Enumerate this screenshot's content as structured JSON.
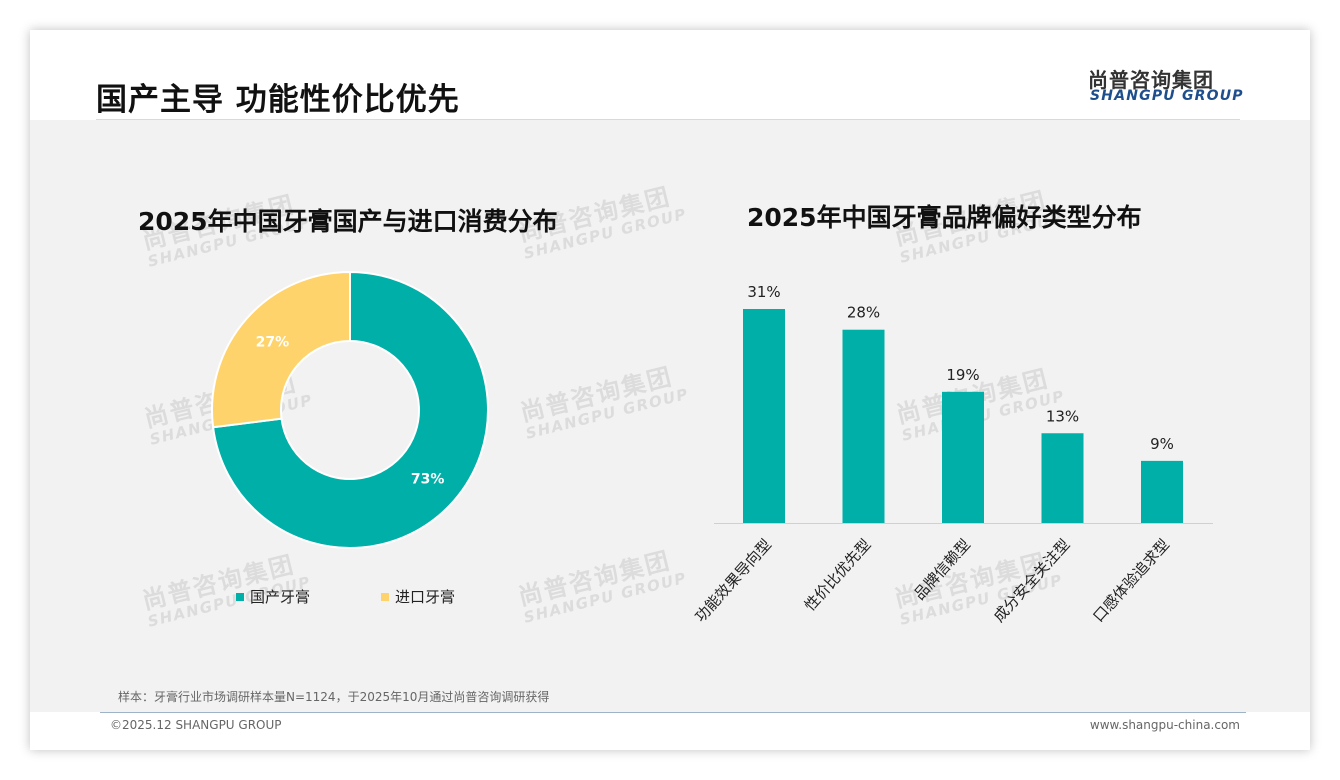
{
  "header": {
    "title": "国产主导 功能性价比优先",
    "logo_cn": "尚普咨询集团",
    "logo_en": "SHANGPU GROUP"
  },
  "watermark": {
    "cn": "尚普咨询集团",
    "en": "SHANGPU GROUP"
  },
  "colors": {
    "teal": "#00b0a8",
    "yellow": "#ffd36b",
    "title_blue": "#1e4f8c"
  },
  "chart_data": [
    {
      "type": "pie",
      "title": "2025年中国牙膏国产与进口消费分布",
      "labels": [
        "国产牙膏",
        "进口牙膏"
      ],
      "values": [
        73,
        27
      ],
      "value_labels": [
        "73%",
        "27%"
      ],
      "colors": [
        "#00b0a8",
        "#ffd36b"
      ],
      "donut": true,
      "legend": "bottom"
    },
    {
      "type": "bar",
      "title": "2025年中国牙膏品牌偏好类型分布",
      "categories": [
        "功能效果导向型",
        "性价比优先型",
        "品牌信赖型",
        "成分安全关注型",
        "口感体验追求型"
      ],
      "values": [
        31,
        28,
        19,
        13,
        9
      ],
      "value_labels": [
        "31%",
        "28%",
        "19%",
        "13%",
        "9%"
      ],
      "ylim": [
        0,
        31
      ],
      "color": "#00b0a8",
      "grid": false
    }
  ],
  "note": "样本：牙膏行业市场调研样本量N=1124，于2025年10月通过尚普咨询调研获得",
  "footer": {
    "copyright": "©2025.12 SHANGPU GROUP",
    "website": "www.shangpu-china.com"
  }
}
